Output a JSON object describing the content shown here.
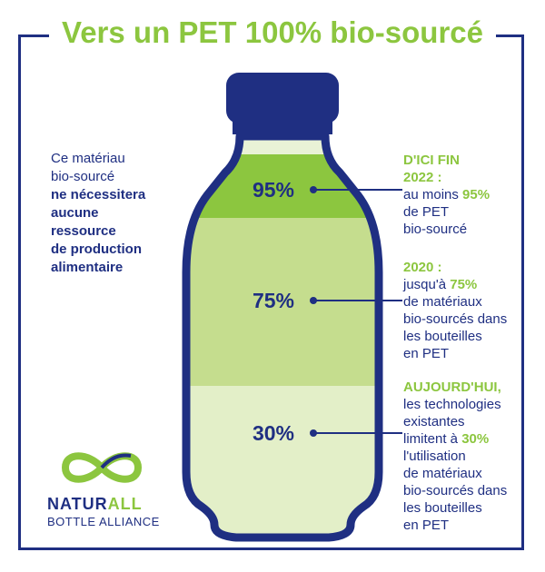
{
  "title": "Vers un PET 100% bio-sourcé",
  "left_text": {
    "line1": "Ce matériau",
    "line2": "bio-sourcé",
    "bold_lines": [
      "ne nécessitera",
      "aucune",
      "ressource",
      "de production",
      "alimentaire"
    ]
  },
  "levels": [
    {
      "value": "95%",
      "head_lines": [
        "D'ICI FIN",
        "2022 :"
      ],
      "text_pre": "au moins ",
      "highlight": "95%",
      "text_lines": [
        "de PET",
        "bio-sourcé"
      ]
    },
    {
      "value": "75%",
      "head_lines": [
        "2020 :"
      ],
      "text_pre": "jusqu'à ",
      "highlight": "75%",
      "text_lines": [
        "de matériaux",
        "bio-sourcés dans",
        "les bouteilles",
        "en PET"
      ]
    },
    {
      "value": "30%",
      "head_lines": [
        "AUJOURD'HUI,"
      ],
      "text_pre_lines": [
        "les technologies",
        "existantes"
      ],
      "text_pre": "limitent à ",
      "highlight": "30%",
      "text_lines": [
        "l'utilisation",
        "de matériaux",
        "bio-sourcés dans",
        "les bouteilles",
        "en PET"
      ]
    }
  ],
  "logo": {
    "name_part1": "NATUR",
    "name_part2": "ALL",
    "subtitle": "BOTTLE ALLIANCE"
  },
  "colors": {
    "navy": "#1f2f82",
    "green": "#8cc63f",
    "light_green": "#c5dd8e",
    "pale_green": "#e3efc8"
  }
}
